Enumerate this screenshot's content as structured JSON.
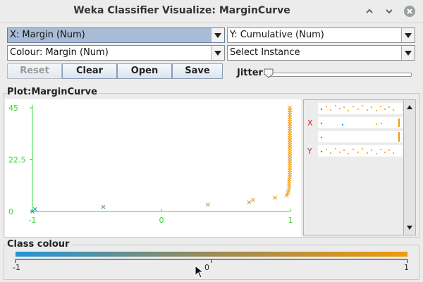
{
  "window": {
    "title": "Weka Classifier Visualize: MarginCurve",
    "controls": [
      "minimize-icon",
      "maximize-icon",
      "close-icon"
    ]
  },
  "controls": {
    "x_axis": "X: Margin (Num)",
    "y_axis": "Y: Cumulative (Num)",
    "colour": "Colour: Margin (Num)",
    "instance": "Select Instance",
    "buttons": {
      "reset": "Reset",
      "clear": "Clear",
      "open": "Open",
      "save": "Save"
    },
    "jitter_label": "Jitter",
    "jitter_value": 0
  },
  "plot": {
    "title": "Plot:MarginCurve"
  },
  "attribute_panel": {
    "x_marker": "X",
    "y_marker": "Y"
  },
  "class_colour": {
    "title": "Class colour",
    "min_label": "-1",
    "mid_label": "0",
    "max_label": "1",
    "colors": {
      "low": "#2196d9",
      "mid": "#9b8a55",
      "high": "#f09a0b"
    }
  },
  "chart_data": {
    "type": "scatter",
    "title": "",
    "xlabel": "",
    "ylabel": "",
    "xlim": [
      -1,
      1
    ],
    "ylim": [
      0,
      45
    ],
    "x_ticks": [
      "-1",
      "0",
      "1"
    ],
    "y_ticks": [
      "0",
      "22.5",
      "45"
    ],
    "axis_color": "#33dd33",
    "points": [
      [
        -1.0,
        0
      ],
      [
        -0.98,
        1
      ],
      [
        -0.45,
        2
      ],
      [
        0.36,
        3
      ],
      [
        0.68,
        4
      ],
      [
        0.71,
        5
      ],
      [
        0.88,
        6
      ],
      [
        0.97,
        7
      ],
      [
        0.98,
        8
      ],
      [
        0.985,
        9
      ],
      [
        0.99,
        10
      ],
      [
        0.99,
        11
      ],
      [
        0.99,
        12
      ],
      [
        0.99,
        13
      ],
      [
        0.99,
        14
      ],
      [
        0.995,
        15
      ],
      [
        0.995,
        16
      ],
      [
        0.995,
        17
      ],
      [
        0.995,
        18
      ],
      [
        0.995,
        19
      ],
      [
        0.995,
        20
      ],
      [
        0.995,
        21
      ],
      [
        0.995,
        22
      ],
      [
        0.995,
        23
      ],
      [
        0.995,
        24
      ],
      [
        0.995,
        25
      ],
      [
        0.995,
        26
      ],
      [
        0.995,
        27
      ],
      [
        0.995,
        28
      ],
      [
        0.995,
        29
      ],
      [
        0.995,
        30
      ],
      [
        0.995,
        31
      ],
      [
        0.995,
        32
      ],
      [
        0.995,
        33
      ],
      [
        0.995,
        34
      ],
      [
        0.995,
        35
      ],
      [
        0.995,
        36
      ],
      [
        0.995,
        37
      ],
      [
        0.995,
        38
      ],
      [
        0.995,
        39
      ],
      [
        0.995,
        40
      ],
      [
        0.995,
        41
      ],
      [
        0.995,
        42
      ],
      [
        0.995,
        43
      ],
      [
        0.995,
        44
      ],
      [
        0.995,
        45
      ]
    ]
  }
}
